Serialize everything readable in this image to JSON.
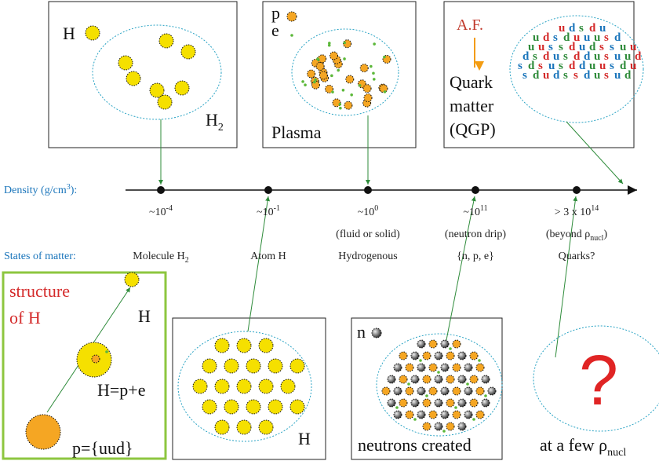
{
  "top": {
    "molecule": {
      "atom_label": "H",
      "molecule_label": {
        "base": "H",
        "sub": "2"
      }
    },
    "plasma": {
      "p_label": "p",
      "e_label": "e",
      "title": "Plasma"
    },
    "quark": {
      "af": "A.F.",
      "title_lines": [
        "Quark",
        "matter",
        "(QGP)"
      ],
      "quarks": [
        "u",
        "d",
        "s",
        "d",
        "u",
        "u",
        "d",
        "s",
        "d",
        "u",
        "u",
        "u",
        "s",
        "d",
        "u",
        "u",
        "s",
        "s",
        "d",
        "u",
        "d",
        "s",
        "s",
        "u",
        "u",
        "d",
        "s",
        "d",
        "u",
        "s",
        "d",
        "d",
        "u",
        "s",
        "u",
        "u",
        "d",
        "s",
        "d",
        "s",
        "u",
        "s",
        "d",
        "d",
        "u",
        "u",
        "s",
        "d",
        "u",
        "s",
        "d",
        "u",
        "d",
        "s",
        "s",
        "d",
        "u",
        "s",
        "u",
        "d"
      ]
    }
  },
  "axis": {
    "label": {
      "base": "Density (g/cm",
      "sup": "3",
      "tail": "):"
    },
    "ticks": [
      {
        "base": "~10",
        "sup": "-4"
      },
      {
        "base": "~10",
        "sup": "-1"
      },
      {
        "base": "~10",
        "sup": "0"
      },
      {
        "base": "~10",
        "sup": "11"
      },
      {
        "base": "> 3 x 10",
        "sup": "14"
      }
    ],
    "notes": [
      null,
      null,
      {
        "base": "(fluid or solid)"
      },
      {
        "base": "(neutron drip)"
      },
      {
        "base": "(beyond ρ",
        "sub": "nucl",
        "tail": ")"
      }
    ],
    "states_label": "States of matter:",
    "states": [
      {
        "base": "Molecule H",
        "sub": "2"
      },
      {
        "base": "Atom H"
      },
      {
        "base": "Hydrogenous"
      },
      {
        "base": "{n, p, e}"
      },
      {
        "base": "Quarks?"
      }
    ]
  },
  "bottom": {
    "structure": {
      "title_lines": [
        "structure",
        "of H"
      ],
      "atom": "H",
      "hydrogen": "H=p+e",
      "proton": "p={uud}",
      "quarks": [
        "u",
        "d",
        "u"
      ]
    },
    "atom_box": {
      "label": "H"
    },
    "neutron_box": {
      "n_label": "n",
      "title": "neutrons created"
    },
    "unknown": {
      "mark": "?",
      "label": {
        "base": "at a few ρ",
        "sub": "nucl"
      }
    }
  }
}
